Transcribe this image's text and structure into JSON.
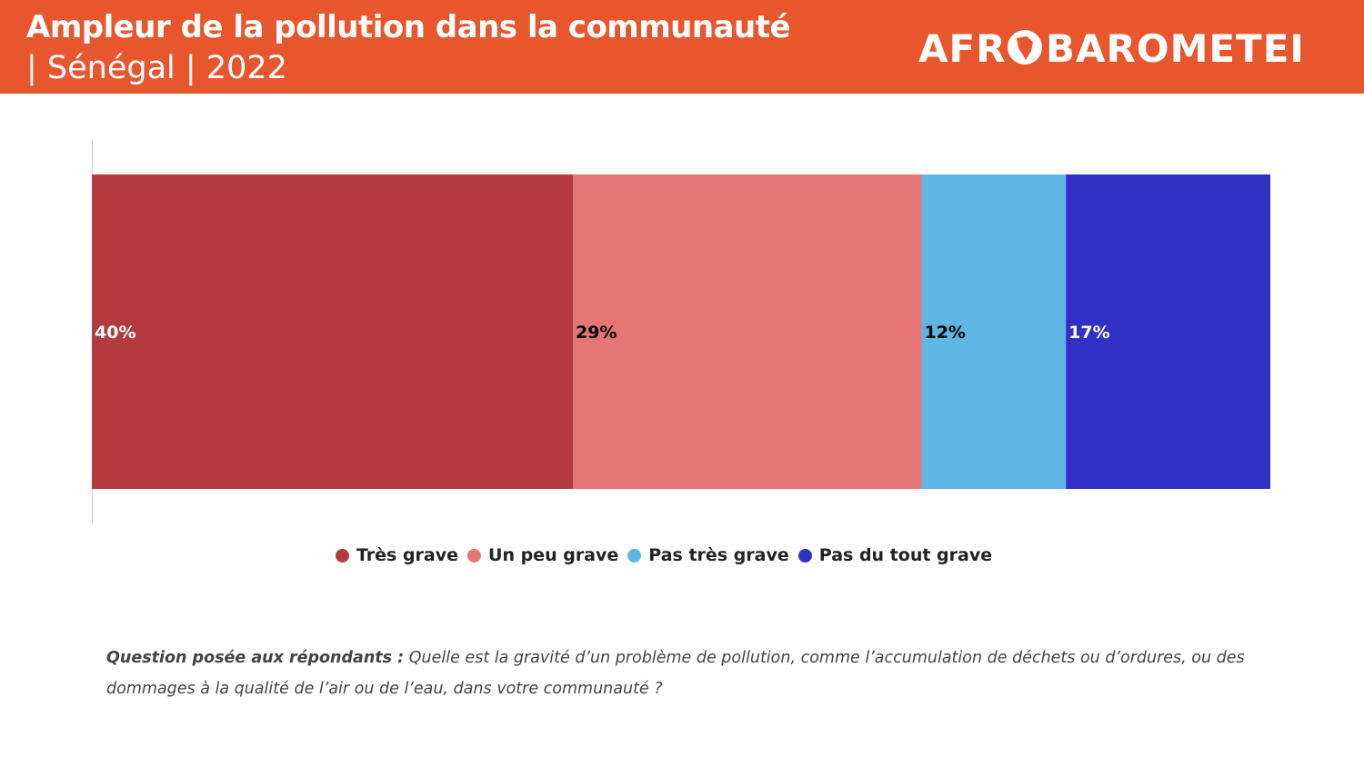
{
  "header": {
    "title": "Ampleur de la pollution dans la communauté",
    "subtitle": "| Sénégal | 2022",
    "logo_text": "AFROBAROMETER",
    "background": "#e8562e"
  },
  "chart_data": {
    "type": "bar",
    "orientation": "horizontal",
    "stacked": true,
    "categories": [
      ""
    ],
    "series": [
      {
        "name": "Très grave",
        "values": [
          40
        ],
        "label": "40%",
        "color": "#b33b3f",
        "label_color": "#ffffff"
      },
      {
        "name": "Un peu grave",
        "values": [
          29
        ],
        "label": "29%",
        "color": "#e87575",
        "label_color": "#000000"
      },
      {
        "name": "Pas très grave",
        "values": [
          12
        ],
        "label": "12%",
        "color": "#5fb6e5",
        "label_color": "#000000"
      },
      {
        "name": "Pas du tout grave",
        "values": [
          17
        ],
        "label": "17%",
        "color": "#3030c4",
        "label_color": "#ffffff"
      }
    ],
    "xlim": [
      0,
      98
    ],
    "legend_position": "bottom",
    "grid": false
  },
  "legend": [
    {
      "label": "Très grave",
      "color": "#b33b3f"
    },
    {
      "label": "Un peu grave",
      "color": "#e87575"
    },
    {
      "label": "Pas très grave",
      "color": "#5fb6e5"
    },
    {
      "label": "Pas du tout grave",
      "color": "#3030c4"
    }
  ],
  "question": {
    "lead": "Question posée aux répondants :",
    "text": " Quelle est la gravité d’un problème de pollution, comme l’accumulation de déchets ou d’ordures, ou des dommages à la qualité de l’air ou de l’eau, dans votre  communauté ?"
  }
}
